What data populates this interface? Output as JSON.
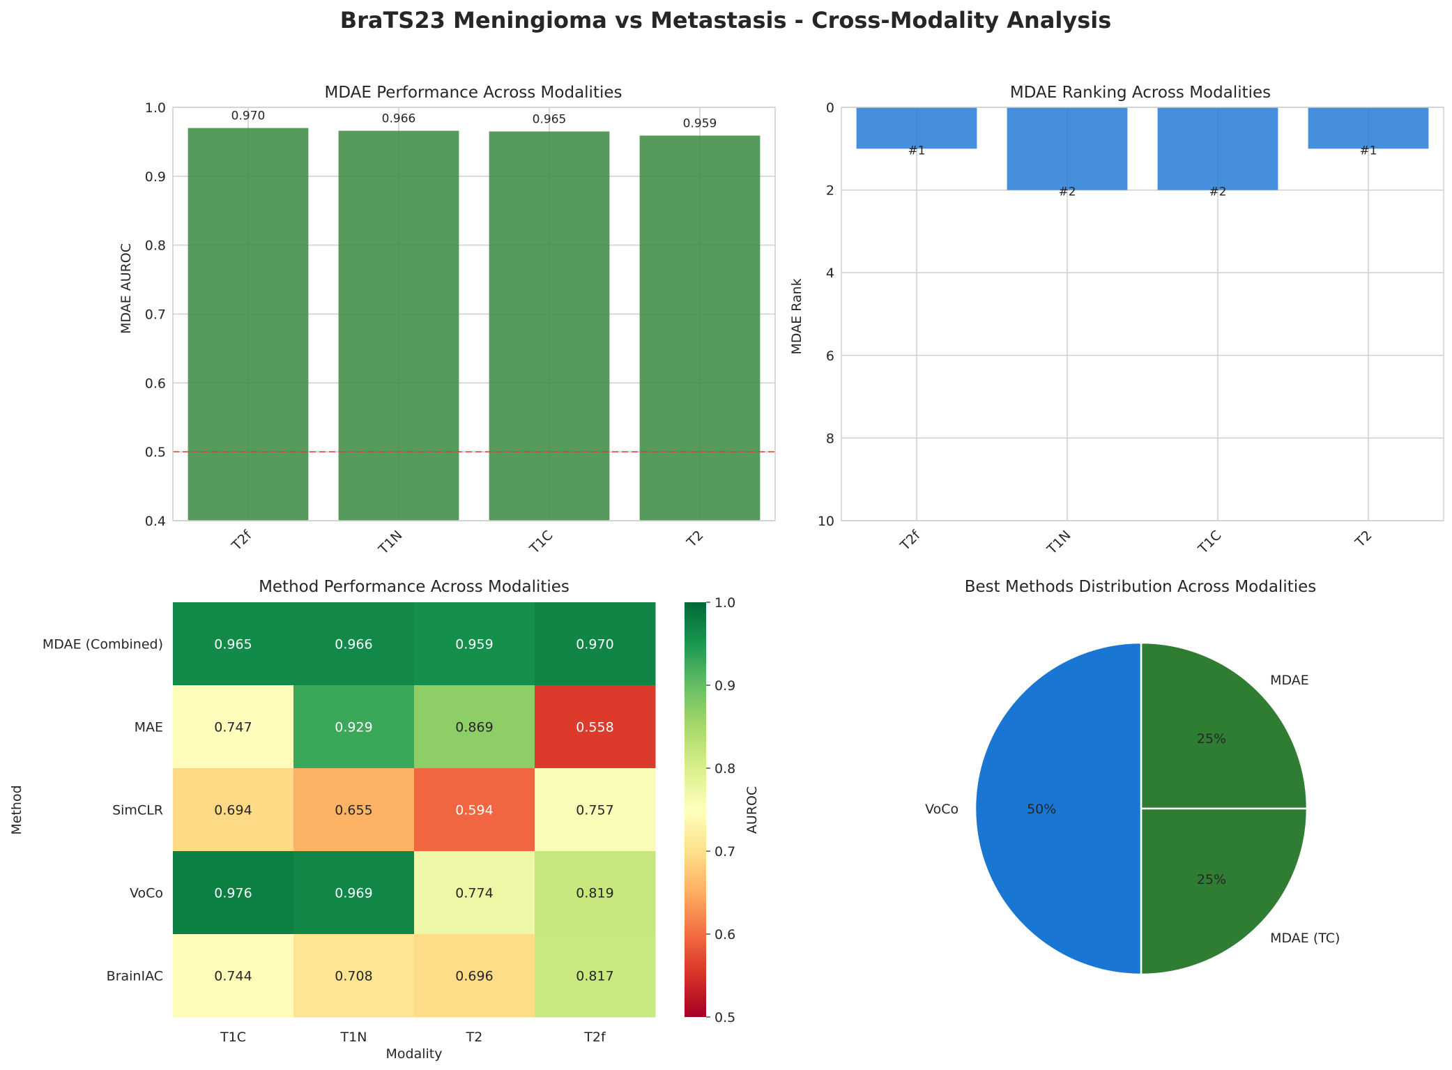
{
  "figure_title": "BraTS23 Meningioma vs Metastasis - Cross-Modality Analysis",
  "colors": {
    "bar_green": "#3a8a3f",
    "bar_blue": "#2b7fd8",
    "baseline_red": "#e03c3c",
    "pie_blue": "#1976d2",
    "pie_green": "#2e7d32"
  },
  "chart_data": [
    {
      "type": "bar",
      "title": "MDAE Performance Across Modalities",
      "categories": [
        "T2f",
        "T1N",
        "T1C",
        "T2"
      ],
      "values": [
        0.97,
        0.966,
        0.965,
        0.959
      ],
      "value_labels": [
        "0.970",
        "0.966",
        "0.965",
        "0.959"
      ],
      "ylabel": "MDAE AUROC",
      "xlabel": "",
      "ylim": [
        0.4,
        1.0
      ],
      "yticks": [
        "0.4",
        "0.5",
        "0.6",
        "0.7",
        "0.8",
        "0.9",
        "1.0"
      ],
      "reference_line": 0.5,
      "grid": true
    },
    {
      "type": "bar",
      "title": "MDAE Ranking Across Modalities",
      "categories": [
        "T2f",
        "T1N",
        "T1C",
        "T2"
      ],
      "values": [
        1,
        2,
        2,
        1
      ],
      "value_labels": [
        "#1",
        "#2",
        "#2",
        "#1"
      ],
      "ylabel": "MDAE Rank",
      "xlabel": "",
      "ylim": [
        10,
        0
      ],
      "yticks": [
        "0",
        "2",
        "4",
        "6",
        "8",
        "10"
      ],
      "inverted_y": true,
      "grid": true
    },
    {
      "type": "heatmap",
      "title": "Method Performance Across Modalities",
      "rows": [
        "MDAE (Combined)",
        "MAE",
        "SimCLR",
        "VoCo",
        "BrainIAC"
      ],
      "columns": [
        "T1C",
        "T1N",
        "T2",
        "T2f"
      ],
      "values": [
        [
          0.965,
          0.966,
          0.959,
          0.97
        ],
        [
          0.747,
          0.929,
          0.869,
          0.558
        ],
        [
          0.694,
          0.655,
          0.594,
          0.757
        ],
        [
          0.976,
          0.969,
          0.774,
          0.819
        ],
        [
          0.744,
          0.708,
          0.696,
          0.817
        ]
      ],
      "value_labels": [
        [
          "0.965",
          "0.966",
          "0.959",
          "0.970"
        ],
        [
          "0.747",
          "0.929",
          "0.869",
          "0.558"
        ],
        [
          "0.694",
          "0.655",
          "0.594",
          "0.757"
        ],
        [
          "0.976",
          "0.969",
          "0.774",
          "0.819"
        ],
        [
          "0.744",
          "0.708",
          "0.696",
          "0.817"
        ]
      ],
      "xlabel": "Modality",
      "ylabel": "Method",
      "colorbar_label": "AUROC",
      "colorbar_range": [
        0.5,
        1.0
      ],
      "colorbar_ticks": [
        "0.5",
        "0.6",
        "0.7",
        "0.8",
        "0.9",
        "1.0"
      ],
      "colormap": "RdYlGn"
    },
    {
      "type": "pie",
      "title": "Best Methods Distribution Across Modalities",
      "labels": [
        "MDAE",
        "MDAE (TC)",
        "VoCo"
      ],
      "values": [
        25,
        25,
        50
      ],
      "pct_labels": [
        "25%",
        "25%",
        "50%"
      ]
    }
  ]
}
